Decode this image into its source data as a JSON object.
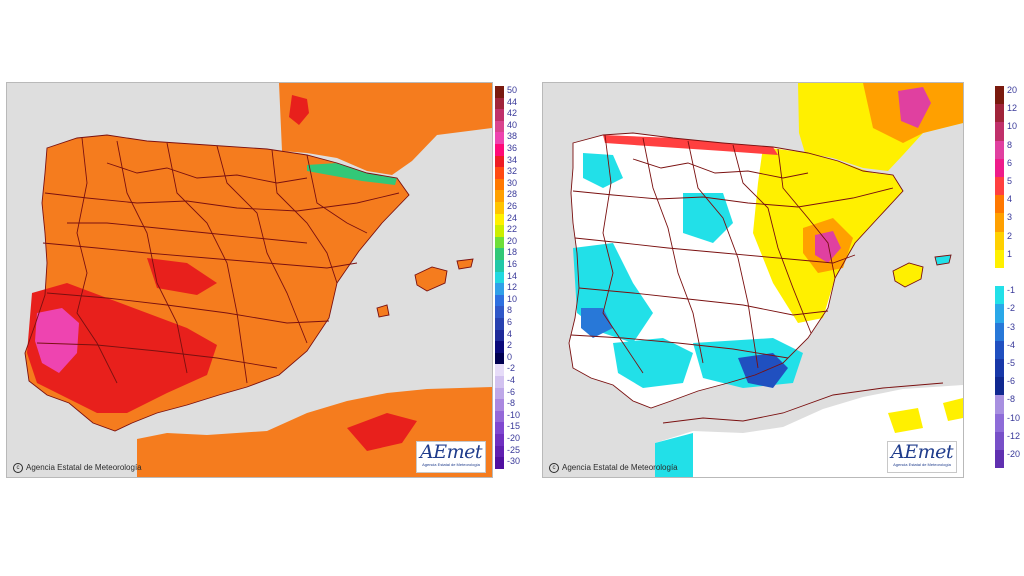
{
  "left_panel": {
    "copyright": "Agencia Estatal de Meteorología",
    "logo": "AEmet",
    "logo_sub": "Agencia Estatal de Meteorología",
    "legend_ticks": [
      "50",
      "44",
      "42",
      "40",
      "38",
      "36",
      "34",
      "32",
      "30",
      "28",
      "26",
      "24",
      "22",
      "20",
      "18",
      "16",
      "14",
      "12",
      "10",
      "8",
      "6",
      "4",
      "2",
      "0",
      "-2",
      "-4",
      "-6",
      "-8",
      "-10",
      "-15",
      "-20",
      "-25",
      "-30"
    ],
    "legend_colors": [
      "#7a1a0e",
      "#a0243a",
      "#c0306a",
      "#d9448e",
      "#ee44b0",
      "#ff0a78",
      "#ee1c24",
      "#ff4a12",
      "#ff7800",
      "#ffa000",
      "#ffc400",
      "#fff000",
      "#ccee00",
      "#6fdf3a",
      "#32c878",
      "#22c8a8",
      "#22d8e0",
      "#30a0e8",
      "#2e70e0",
      "#3058c8",
      "#2842b0",
      "#1e2a98",
      "#0a0a7a",
      "#000050",
      "#e6dcf8",
      "#d2c2f0",
      "#bea8e8",
      "#aa88e0",
      "#9468d8",
      "#8048d0",
      "#7030c0",
      "#6020b0",
      "#5010a0"
    ]
  },
  "right_panel": {
    "copyright": "Agencia Estatal de Meteorología",
    "logo": "AEmet",
    "logo_sub": "Agencia Estatal de Meteorología",
    "legend_ticks": [
      "20",
      "12",
      "10",
      "8",
      "6",
      "5",
      "4",
      "3",
      "2",
      "1",
      "",
      "-1",
      "-2",
      "-3",
      "-4",
      "-5",
      "-6",
      "-8",
      "-10",
      "-12",
      "-20"
    ],
    "legend_colors": [
      "#7a1a0e",
      "#a0243a",
      "#c0306a",
      "#e040a0",
      "#ee1c8a",
      "#ff4040",
      "#ff7800",
      "#ffa000",
      "#ffd000",
      "#fff000",
      "#ffffff",
      "#22e0e8",
      "#2aa8e8",
      "#2878d8",
      "#2050c0",
      "#1838a8",
      "#102890",
      "#a890e0",
      "#8e6cd8",
      "#7850c8",
      "#6030b0"
    ]
  }
}
